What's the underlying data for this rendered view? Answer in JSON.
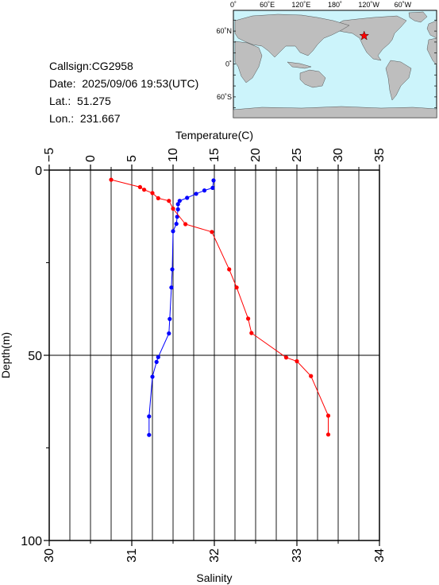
{
  "info": {
    "callsign": "Callsign:CG2958",
    "date": "Date:  2025/09/06 19:53(UTC)",
    "lat": "Lat.:  51.275",
    "lon": "Lon.:  231.667"
  },
  "map": {
    "top_ticks": [
      "0˚",
      "60˚E",
      "120˚E",
      "180˚",
      "120˚W",
      "60˚W"
    ],
    "lat_ticks": [
      "60˚N",
      "0˚",
      "60˚S"
    ],
    "ocean_color": "#ccf4fb",
    "land_color": "#bebebe",
    "marker": {
      "lon": 231.667,
      "lat": 51.275,
      "color": "#ff0000",
      "icon": "star-icon"
    }
  },
  "chart_data": {
    "type": "line",
    "y_axis": {
      "label": "Depth(m)",
      "range": [
        0,
        100
      ],
      "ticks": [
        "0",
        "50",
        "100"
      ],
      "inverted": true
    },
    "x_top": {
      "label": "Temperature(C)",
      "range": [
        -5,
        35
      ],
      "ticks": [
        "−5",
        "0",
        "5",
        "10",
        "15",
        "20",
        "25",
        "30",
        "35"
      ]
    },
    "x_bottom": {
      "label": "Salinity",
      "range": [
        30,
        34
      ],
      "ticks": [
        "30",
        "31",
        "32",
        "33",
        "34"
      ]
    },
    "grid": {
      "vertical": true,
      "horizontal_at": [
        50
      ]
    },
    "series": [
      {
        "axis": "temperature",
        "color": "#0000ff",
        "points": [
          [
            14.9,
            2.8
          ],
          [
            14.8,
            4.8
          ],
          [
            13.8,
            5.5
          ],
          [
            12.8,
            6.4
          ],
          [
            11.7,
            7.5
          ],
          [
            10.8,
            8.3
          ],
          [
            10.6,
            9.2
          ],
          [
            10.6,
            10.6
          ],
          [
            10.5,
            12.6
          ],
          [
            10.4,
            14.5
          ],
          [
            10.0,
            16.5
          ],
          [
            9.9,
            26.8
          ],
          [
            9.8,
            31.7
          ],
          [
            9.6,
            40.2
          ],
          [
            9.5,
            44.1
          ],
          [
            8.2,
            50.5
          ],
          [
            8.0,
            51.8
          ],
          [
            7.5,
            55.8
          ],
          [
            7.1,
            66.5
          ],
          [
            7.1,
            71.5
          ]
        ]
      },
      {
        "axis": "salinity",
        "color": "#ff0000",
        "points": [
          [
            30.75,
            2.6
          ],
          [
            31.1,
            4.6
          ],
          [
            31.15,
            5.3
          ],
          [
            31.25,
            6.2
          ],
          [
            31.32,
            7.6
          ],
          [
            31.45,
            8.3
          ],
          [
            31.5,
            10.4
          ],
          [
            31.65,
            14.6
          ],
          [
            31.97,
            16.7
          ],
          [
            32.18,
            26.8
          ],
          [
            32.27,
            31.7
          ],
          [
            32.41,
            40.1
          ],
          [
            32.45,
            44.0
          ],
          [
            32.87,
            50.6
          ],
          [
            33.0,
            51.6
          ],
          [
            33.17,
            55.6
          ],
          [
            33.38,
            66.3
          ],
          [
            33.38,
            71.4
          ]
        ]
      }
    ]
  }
}
